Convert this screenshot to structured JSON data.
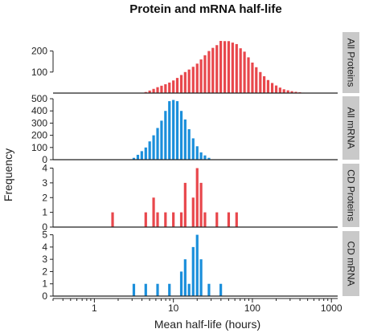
{
  "chart_data": {
    "type": "bar",
    "title": "Protein and mRNA half-life",
    "xlabel": "Mean half-life (hours)",
    "ylabel": "Frequency",
    "x_scale": "log",
    "xlim": [
      0.3,
      1200
    ],
    "x_ticks": [
      1,
      10,
      100,
      1000
    ],
    "x_tick_labels": [
      "1",
      "10",
      "100",
      "1000"
    ],
    "panels": [
      {
        "strip_label": "All Proteins",
        "color": "#e8474c",
        "ylim": [
          0,
          290
        ],
        "y_ticks": [
          100,
          200
        ],
        "x": [
          4.47,
          5.01,
          5.62,
          6.31,
          7.08,
          7.94,
          8.91,
          10,
          11.2,
          12.6,
          14.1,
          15.8,
          17.8,
          20,
          22.4,
          25.1,
          28.2,
          31.6,
          35.5,
          39.8,
          44.7,
          50.1,
          56.2,
          63.1,
          70.8,
          79.4,
          89.1,
          100,
          112,
          126,
          141,
          158,
          178,
          200,
          224,
          251,
          282,
          316,
          355,
          398,
          447,
          501
        ],
        "values": [
          5,
          12,
          20,
          28,
          35,
          42,
          50,
          60,
          72,
          86,
          100,
          112,
          125,
          140,
          160,
          180,
          200,
          215,
          228,
          248,
          247,
          247,
          240,
          233,
          213,
          197,
          170,
          145,
          123,
          100,
          80,
          62,
          48,
          36,
          26,
          18,
          13,
          9,
          6,
          4,
          2,
          1
        ]
      },
      {
        "strip_label": "All mRNA",
        "color": "#1b8fdb",
        "ylim": [
          0,
          520
        ],
        "y_ticks": [
          0,
          100,
          200,
          300,
          400,
          500
        ],
        "x": [
          3.16,
          3.55,
          3.98,
          4.47,
          5.01,
          5.62,
          6.31,
          7.08,
          7.94,
          8.91,
          10,
          11.2,
          12.6,
          14.1,
          15.8,
          17.8,
          20,
          22.4,
          25.1,
          28.2
        ],
        "values": [
          15,
          40,
          70,
          100,
          150,
          200,
          260,
          320,
          400,
          480,
          490,
          480,
          400,
          330,
          250,
          175,
          110,
          60,
          35,
          15
        ]
      },
      {
        "strip_label": "CD Proteins",
        "color": "#e8474c",
        "ylim": [
          0,
          4.3
        ],
        "y_ticks": [
          0,
          1,
          2,
          3,
          4
        ],
        "x": [
          1.7,
          4.47,
          5.62,
          6.31,
          7.94,
          10,
          12.6,
          14.1,
          17.8,
          20,
          22.4,
          25.1,
          35.5,
          50.1,
          63.1
        ],
        "values": [
          1,
          1,
          2,
          1,
          1,
          1,
          1,
          3,
          2,
          4,
          3,
          1,
          1,
          1,
          1
        ]
      },
      {
        "strip_label": "CD mRNA",
        "color": "#1b8fdb",
        "ylim": [
          0,
          5.3
        ],
        "y_ticks": [
          0,
          1,
          2,
          3,
          4,
          5
        ],
        "x": [
          3.16,
          4.47,
          6.31,
          8.91,
          12.6,
          14.1,
          15.8,
          17.8,
          20,
          22.4,
          28.2,
          39.8
        ],
        "values": [
          1,
          1,
          1,
          1,
          2,
          3,
          1,
          4,
          5,
          3,
          1,
          1
        ]
      }
    ]
  }
}
